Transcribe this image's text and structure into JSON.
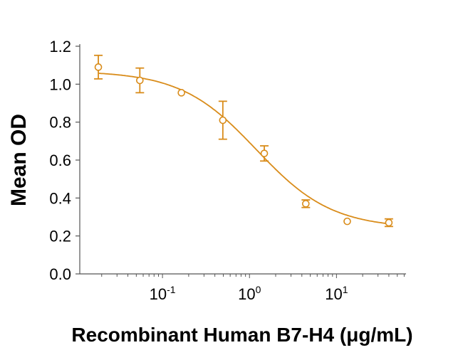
{
  "chart_data": {
    "type": "scatter",
    "title": "",
    "xlabel": "Recombinant Human B7-H4 (μg/mL)",
    "ylabel": "Mean OD",
    "xscale": "log",
    "xlim": [
      0.0112,
      63
    ],
    "ylim": [
      0,
      1.2
    ],
    "yticks": [
      "0.0",
      "0.2",
      "0.4",
      "0.6",
      "0.8",
      "1.0",
      "1.2"
    ],
    "xticks": [
      {
        "value": 0.1,
        "base": "10",
        "exp": "-1"
      },
      {
        "value": 1,
        "base": "10",
        "exp": "0"
      },
      {
        "value": 10,
        "base": "10",
        "exp": "1"
      }
    ],
    "grid": false,
    "color": "#D98C1A",
    "series": [
      {
        "x": [
          0.0183,
          0.0549,
          0.165,
          0.494,
          1.48,
          4.44,
          13.3,
          40
        ],
        "y": [
          1.09,
          1.02,
          0.955,
          0.81,
          0.635,
          0.37,
          0.277,
          0.27
        ],
        "error": [
          0.062,
          0.065,
          0,
          0.1,
          0.04,
          0.02,
          0,
          0.02
        ]
      }
    ],
    "fit": {
      "model": "4PL",
      "top": 1.07,
      "bottom": 0.24,
      "ec50": 1.2,
      "hill": 1.0
    }
  }
}
